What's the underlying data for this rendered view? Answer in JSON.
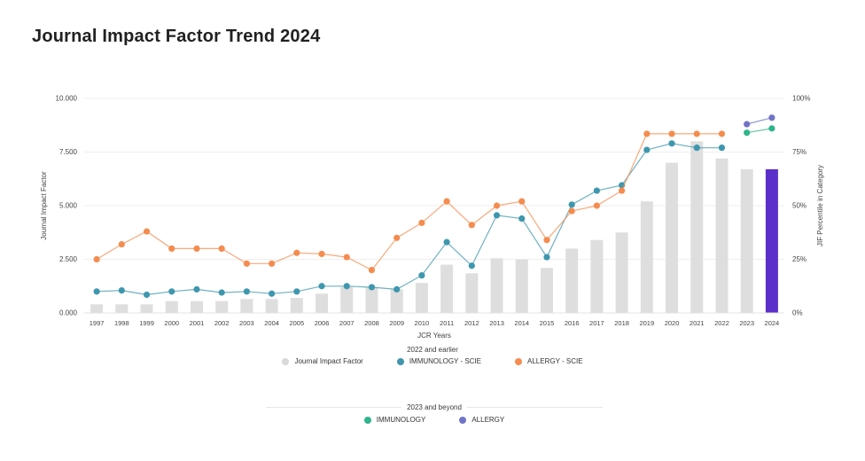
{
  "page": {
    "title": "Journal Impact Factor Trend 2024"
  },
  "chart_data": {
    "type": "bar+line combo",
    "title": "Journal Impact Factor Trend 2024",
    "xlabel": "JCR Years",
    "categories": [
      1997,
      1998,
      1999,
      2000,
      2001,
      2002,
      2003,
      2004,
      2005,
      2006,
      2007,
      2008,
      2009,
      2010,
      2011,
      2012,
      2013,
      2014,
      2015,
      2016,
      2017,
      2018,
      2019,
      2020,
      2021,
      2022,
      2023,
      2024
    ],
    "left_axis": {
      "label": "Journal Impact Factor",
      "range": [
        0,
        10
      ],
      "ticks": [
        "0.000",
        "2.500",
        "5.000",
        "7.500",
        "10.000"
      ]
    },
    "right_axis": {
      "label": "JIF Percentile in Category",
      "range": [
        0,
        100
      ],
      "ticks": [
        "0%",
        "25%",
        "50%",
        "75%",
        "100%"
      ]
    },
    "grid": true,
    "series": [
      {
        "name": "Journal Impact Factor",
        "type": "bar",
        "axis": "left",
        "color": "#dedede",
        "highlight_color": "#5b2fc9",
        "highlight_index": 27,
        "values": [
          0.4,
          0.4,
          0.4,
          0.55,
          0.55,
          0.55,
          0.65,
          0.65,
          0.7,
          0.9,
          1.2,
          1.2,
          1.1,
          1.4,
          2.25,
          1.85,
          2.55,
          2.5,
          2.1,
          3.0,
          3.4,
          3.75,
          5.2,
          7.0,
          8.0,
          7.2,
          6.7,
          6.7
        ]
      },
      {
        "name": "IMMUNOLOGY - SCIE",
        "type": "line",
        "axis": "right",
        "color": "#3e97ae",
        "values": [
          10,
          10.5,
          8.5,
          10,
          11,
          9.5,
          10,
          9,
          10,
          12.5,
          12.5,
          12,
          11,
          17.5,
          33,
          22,
          45.5,
          44,
          26,
          50.5,
          57,
          59.5,
          76,
          79,
          77,
          77,
          null,
          null
        ]
      },
      {
        "name": "ALLERGY - SCIE",
        "type": "line",
        "axis": "right",
        "color": "#f58c4f",
        "values": [
          25,
          32,
          38,
          30,
          30,
          30,
          23,
          23,
          28,
          27.5,
          26,
          20,
          35,
          42,
          52,
          41,
          50,
          52,
          34,
          47.5,
          50,
          57,
          83.5,
          83.5,
          83.5,
          83.5,
          null,
          null
        ]
      },
      {
        "name": "IMMUNOLOGY",
        "type": "line",
        "axis": "right",
        "color": "#2fb58b",
        "values": [
          null,
          null,
          null,
          null,
          null,
          null,
          null,
          null,
          null,
          null,
          null,
          null,
          null,
          null,
          null,
          null,
          null,
          null,
          null,
          null,
          null,
          null,
          null,
          null,
          null,
          null,
          84,
          86
        ]
      },
      {
        "name": "ALLERGY",
        "type": "line",
        "axis": "right",
        "color": "#6f74c5",
        "values": [
          null,
          null,
          null,
          null,
          null,
          null,
          null,
          null,
          null,
          null,
          null,
          null,
          null,
          null,
          null,
          null,
          null,
          null,
          null,
          null,
          null,
          null,
          null,
          null,
          null,
          null,
          88,
          91
        ]
      }
    ]
  },
  "legend1": {
    "header": "2022 and earlier",
    "items": [
      {
        "label": "Journal Impact Factor",
        "color": "#d9d9d9"
      },
      {
        "label": "IMMUNOLOGY - SCIE",
        "color": "#3e97ae"
      },
      {
        "label": "ALLERGY - SCIE",
        "color": "#f58c4f"
      }
    ]
  },
  "legend2": {
    "header": "2023 and beyond",
    "items": [
      {
        "label": "IMMUNOLOGY",
        "color": "#2fb58b"
      },
      {
        "label": "ALLERGY",
        "color": "#6f74c5"
      }
    ]
  },
  "colors": {
    "bar": "#dedede",
    "bar_highlight": "#5b2fc9",
    "immunology_scie": "#3e97ae",
    "allergy_scie": "#f58c4f",
    "immunology_new": "#2fb58b",
    "allergy_new": "#6f74c5",
    "grid": "#f1eeee",
    "axis_text": "#444444"
  }
}
